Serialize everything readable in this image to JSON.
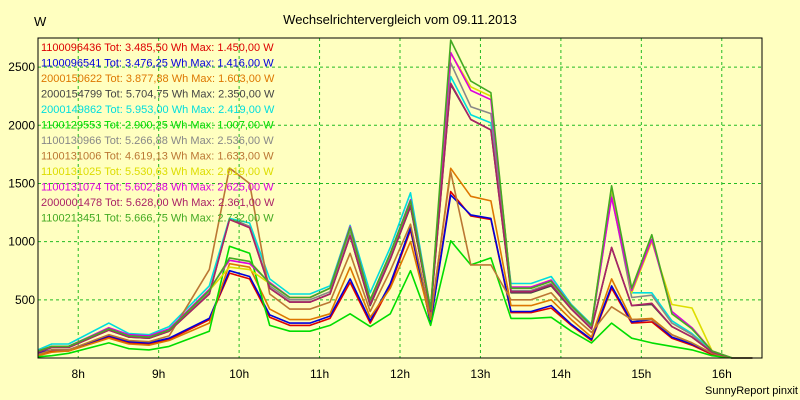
{
  "footer": "SunnyReport pinxit",
  "chart_data": {
    "type": "line",
    "title": "Wechselrichtervergleich vom 09.11.2013",
    "xlabel": "",
    "ylabel": "W",
    "xlim": [
      7.5,
      16.5
    ],
    "ylim": [
      0,
      2750
    ],
    "yticks": [
      500,
      1000,
      1500,
      2000,
      2500
    ],
    "xticks": [
      {
        "value": 8,
        "label": "8h"
      },
      {
        "value": 9,
        "label": "9h"
      },
      {
        "value": 10,
        "label": "10h"
      },
      {
        "value": 11,
        "label": "11h"
      },
      {
        "value": 12,
        "label": "12h"
      },
      {
        "value": 13,
        "label": "13h"
      },
      {
        "value": 14,
        "label": "14h"
      },
      {
        "value": 15,
        "label": "15h"
      },
      {
        "value": 16,
        "label": "16h"
      }
    ],
    "grid": true,
    "legend_position": "top-left",
    "x": [
      7.5,
      7.67,
      7.88,
      8.38,
      8.63,
      8.88,
      9.13,
      9.63,
      9.88,
      10.13,
      10.38,
      10.63,
      10.88,
      11.13,
      11.38,
      11.63,
      11.88,
      12.13,
      12.38,
      12.63,
      12.88,
      13.13,
      13.38,
      13.63,
      13.88,
      14.13,
      14.38,
      14.63,
      14.88,
      15.13,
      15.38,
      15.63,
      15.88,
      16.13,
      16.38
    ],
    "series": [
      {
        "name": "1100096436",
        "total": "3.485,50",
        "max": "1.450,00",
        "color": "#DD0000",
        "values": [
          30,
          60,
          60,
          180,
          130,
          120,
          160,
          330,
          730,
          680,
          350,
          280,
          280,
          340,
          650,
          300,
          620,
          1100,
          300,
          1430,
          1220,
          1190,
          390,
          390,
          430,
          280,
          150,
          600,
          300,
          310,
          170,
          110,
          30,
          0,
          0
        ]
      },
      {
        "name": "1100096541",
        "total": "3.476,25",
        "max": "1.416,00",
        "color": "#0000DD",
        "values": [
          40,
          70,
          70,
          190,
          140,
          130,
          170,
          340,
          750,
          700,
          370,
          300,
          300,
          360,
          680,
          320,
          640,
          1120,
          300,
          1400,
          1230,
          1200,
          400,
          400,
          450,
          290,
          160,
          620,
          310,
          330,
          180,
          120,
          40,
          0,
          0
        ]
      },
      {
        "name": "2000150622",
        "total": "3.877,88",
        "max": "1.603,00",
        "color": "#DD7700",
        "values": [
          20,
          50,
          60,
          170,
          120,
          110,
          150,
          300,
          810,
          780,
          420,
          330,
          330,
          380,
          780,
          350,
          600,
          1000,
          330,
          1630,
          1390,
          1350,
          450,
          450,
          500,
          330,
          180,
          680,
          330,
          340,
          200,
          130,
          40,
          0,
          0
        ]
      },
      {
        "name": "2000154799",
        "total": "5.704,75",
        "max": "2.350,00",
        "color": "#444444",
        "values": [
          50,
          90,
          90,
          240,
          180,
          170,
          230,
          550,
          1200,
          1130,
          600,
          480,
          480,
          550,
          1050,
          450,
          850,
          1300,
          400,
          2350,
          2050,
          1960,
          560,
          560,
          620,
          420,
          250,
          950,
          450,
          460,
          270,
          180,
          50,
          0,
          0
        ]
      },
      {
        "name": "2000149862",
        "total": "5.953,00",
        "max": "2.419,00",
        "color": "#00DDDD",
        "values": [
          70,
          120,
          120,
          300,
          210,
          200,
          270,
          620,
          1200,
          1160,
          680,
          550,
          550,
          620,
          1140,
          560,
          950,
          1420,
          420,
          2419,
          2090,
          2020,
          640,
          640,
          700,
          460,
          290,
          1420,
          560,
          560,
          320,
          210,
          60,
          0,
          0
        ]
      },
      {
        "name": "1100129553",
        "total": "2.900,25",
        "max": "1.007,00",
        "color": "#00DD00",
        "values": [
          10,
          20,
          40,
          130,
          80,
          70,
          100,
          230,
          960,
          900,
          280,
          230,
          230,
          280,
          380,
          270,
          380,
          750,
          280,
          1007,
          800,
          860,
          340,
          340,
          350,
          230,
          130,
          300,
          170,
          130,
          100,
          70,
          20,
          0,
          0
        ]
      },
      {
        "name": "1100130966",
        "total": "5.266,88",
        "max": "2.536,00",
        "color": "#888888",
        "values": [
          60,
          100,
          100,
          250,
          190,
          180,
          240,
          560,
          1190,
          1130,
          620,
          500,
          500,
          570,
          1080,
          480,
          870,
          1320,
          400,
          2536,
          2160,
          2100,
          580,
          580,
          640,
          430,
          260,
          1400,
          520,
          540,
          300,
          200,
          50,
          0,
          0
        ]
      },
      {
        "name": "1100131006",
        "total": "4.619,13",
        "max": "1.633,00",
        "color": "#BB7733",
        "values": [
          30,
          70,
          70,
          200,
          150,
          140,
          190,
          760,
          1633,
          1500,
          550,
          420,
          420,
          480,
          900,
          400,
          750,
          1150,
          350,
          1600,
          800,
          800,
          500,
          500,
          560,
          370,
          220,
          440,
          330,
          330,
          200,
          130,
          40,
          0,
          0
        ]
      },
      {
        "name": "1100131025",
        "total": "5.530,63",
        "max": "2.619,00",
        "color": "#DDDD00",
        "values": [
          60,
          100,
          100,
          250,
          190,
          180,
          240,
          580,
          780,
          760,
          640,
          520,
          520,
          600,
          1120,
          500,
          900,
          1350,
          420,
          2619,
          2330,
          2250,
          600,
          600,
          660,
          450,
          280,
          1460,
          560,
          1000,
          460,
          430,
          60,
          0,
          0
        ]
      },
      {
        "name": "1100131074",
        "total": "5.602,88",
        "max": "2.625,00",
        "color": "#DD00DD",
        "values": [
          60,
          100,
          100,
          260,
          200,
          190,
          250,
          590,
          840,
          810,
          650,
          520,
          520,
          600,
          1130,
          500,
          900,
          1360,
          420,
          2625,
          2300,
          2220,
          610,
          610,
          670,
          450,
          280,
          1380,
          580,
          1020,
          400,
          260,
          60,
          0,
          0
        ]
      },
      {
        "name": "2000001478",
        "total": "5.628,00",
        "max": "2.361,00",
        "color": "#AA2266",
        "values": [
          50,
          90,
          90,
          240,
          180,
          170,
          230,
          550,
          1190,
          1120,
          600,
          480,
          480,
          550,
          1050,
          460,
          850,
          1310,
          400,
          2361,
          2050,
          1960,
          570,
          570,
          630,
          420,
          250,
          950,
          450,
          470,
          270,
          180,
          50,
          0,
          0
        ]
      },
      {
        "name": "1100213451",
        "total": "5.666,75",
        "max": "2.732,00",
        "color": "#44AA22",
        "values": [
          60,
          100,
          100,
          250,
          190,
          180,
          240,
          580,
          860,
          830,
          640,
          520,
          520,
          600,
          1120,
          500,
          900,
          1350,
          420,
          2732,
          2380,
          2280,
          600,
          600,
          660,
          450,
          280,
          1480,
          600,
          1060,
          380,
          250,
          60,
          0,
          0
        ]
      }
    ]
  }
}
